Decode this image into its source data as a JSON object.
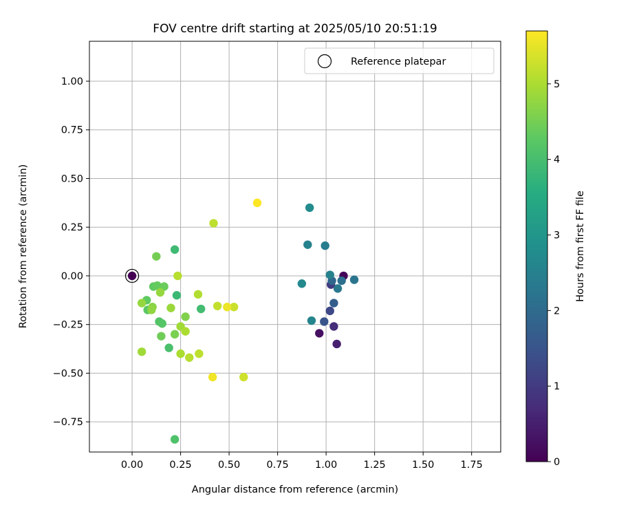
{
  "chart_data": {
    "type": "scatter",
    "title": "FOV centre drift starting at 2025/05/10 20:51:19",
    "xlabel": "Angular distance from reference (arcmin)",
    "ylabel": "Rotation from reference (arcmin)",
    "xlim": [
      -0.22,
      1.9
    ],
    "ylim": [
      -0.905,
      1.205
    ],
    "xticks": [
      0.0,
      0.25,
      0.5,
      0.75,
      1.0,
      1.25,
      1.5,
      1.75
    ],
    "xtick_labels": [
      "0.00",
      "0.25",
      "0.50",
      "0.75",
      "1.00",
      "1.25",
      "1.50",
      "1.75"
    ],
    "yticks": [
      1.0,
      0.75,
      0.5,
      0.25,
      0.0,
      -0.25,
      -0.5,
      -0.75
    ],
    "ytick_labels": [
      "1.00",
      "0.75",
      "0.50",
      "0.25",
      "0.00",
      "−0.25",
      "−0.50",
      "−0.75"
    ],
    "grid": true,
    "legend": {
      "placement": "top-right",
      "entries": [
        "Reference platepar"
      ]
    },
    "reference_point": {
      "x": 0.0,
      "y": 0.0
    },
    "colorbar": {
      "label": "Hours from first FF file",
      "colormap": "viridis",
      "range": [
        0,
        5.7
      ],
      "ticks": [
        0,
        1,
        2,
        3,
        4,
        5
      ],
      "tick_labels": [
        "0",
        "1",
        "2",
        "3",
        "4",
        "5"
      ]
    },
    "points": [
      {
        "x": 0.0,
        "y": 0.0,
        "hours": 0.0
      },
      {
        "x": 1.09,
        "y": 0.0,
        "hours": 0.05
      },
      {
        "x": 0.965,
        "y": -0.295,
        "hours": 0.25
      },
      {
        "x": 1.055,
        "y": -0.35,
        "hours": 0.5
      },
      {
        "x": 1.04,
        "y": -0.26,
        "hours": 0.75
      },
      {
        "x": 1.025,
        "y": -0.045,
        "hours": 1.0
      },
      {
        "x": 1.02,
        "y": -0.18,
        "hours": 1.25
      },
      {
        "x": 0.99,
        "y": -0.235,
        "hours": 1.5
      },
      {
        "x": 1.04,
        "y": -0.14,
        "hours": 1.7
      },
      {
        "x": 1.03,
        "y": -0.025,
        "hours": 1.9
      },
      {
        "x": 1.08,
        "y": -0.025,
        "hours": 2.1
      },
      {
        "x": 1.145,
        "y": -0.02,
        "hours": 2.2
      },
      {
        "x": 1.06,
        "y": -0.065,
        "hours": 2.3
      },
      {
        "x": 0.995,
        "y": 0.155,
        "hours": 2.4
      },
      {
        "x": 1.02,
        "y": 0.005,
        "hours": 2.5
      },
      {
        "x": 0.905,
        "y": 0.16,
        "hours": 2.55
      },
      {
        "x": 0.925,
        "y": -0.23,
        "hours": 2.6
      },
      {
        "x": 0.875,
        "y": -0.04,
        "hours": 2.7
      },
      {
        "x": 0.915,
        "y": 0.35,
        "hours": 2.75
      },
      {
        "x": 0.22,
        "y": 0.135,
        "hours": 3.9
      },
      {
        "x": 0.23,
        "y": -0.1,
        "hours": 3.85
      },
      {
        "x": 0.355,
        "y": -0.17,
        "hours": 3.95
      },
      {
        "x": 0.19,
        "y": -0.37,
        "hours": 4.05
      },
      {
        "x": 0.22,
        "y": -0.84,
        "hours": 4.1
      },
      {
        "x": 0.14,
        "y": -0.235,
        "hours": 4.15
      },
      {
        "x": 0.155,
        "y": -0.245,
        "hours": 4.2
      },
      {
        "x": 0.08,
        "y": -0.175,
        "hours": 4.25
      },
      {
        "x": 0.075,
        "y": -0.125,
        "hours": 4.3
      },
      {
        "x": 0.11,
        "y": -0.055,
        "hours": 4.3
      },
      {
        "x": 0.13,
        "y": -0.05,
        "hours": 4.35
      },
      {
        "x": 0.165,
        "y": -0.055,
        "hours": 4.4
      },
      {
        "x": 0.15,
        "y": -0.31,
        "hours": 4.45
      },
      {
        "x": 0.125,
        "y": 0.1,
        "hours": 4.5
      },
      {
        "x": 0.22,
        "y": -0.3,
        "hours": 4.55
      },
      {
        "x": 0.275,
        "y": -0.21,
        "hours": 4.6
      },
      {
        "x": 0.105,
        "y": -0.16,
        "hours": 4.7
      },
      {
        "x": 0.1,
        "y": -0.175,
        "hours": 4.75
      },
      {
        "x": 0.05,
        "y": -0.14,
        "hours": 4.8
      },
      {
        "x": 0.145,
        "y": -0.085,
        "hours": 4.8
      },
      {
        "x": 0.2,
        "y": -0.165,
        "hours": 4.85
      },
      {
        "x": 0.05,
        "y": -0.39,
        "hours": 4.9
      },
      {
        "x": 0.25,
        "y": -0.26,
        "hours": 4.9
      },
      {
        "x": 0.275,
        "y": -0.285,
        "hours": 5.0
      },
      {
        "x": 0.25,
        "y": -0.4,
        "hours": 5.0
      },
      {
        "x": 0.34,
        "y": -0.095,
        "hours": 5.05
      },
      {
        "x": 0.235,
        "y": 0.0,
        "hours": 5.1
      },
      {
        "x": 0.295,
        "y": -0.42,
        "hours": 5.1
      },
      {
        "x": 0.345,
        "y": -0.4,
        "hours": 5.15
      },
      {
        "x": 0.42,
        "y": 0.27,
        "hours": 5.15
      },
      {
        "x": 0.44,
        "y": -0.155,
        "hours": 5.2
      },
      {
        "x": 0.525,
        "y": -0.16,
        "hours": 5.25
      },
      {
        "x": 0.575,
        "y": -0.52,
        "hours": 5.3
      },
      {
        "x": 0.49,
        "y": -0.16,
        "hours": 5.55
      },
      {
        "x": 0.415,
        "y": -0.52,
        "hours": 5.6
      },
      {
        "x": 0.645,
        "y": 0.375,
        "hours": 5.7
      }
    ]
  }
}
